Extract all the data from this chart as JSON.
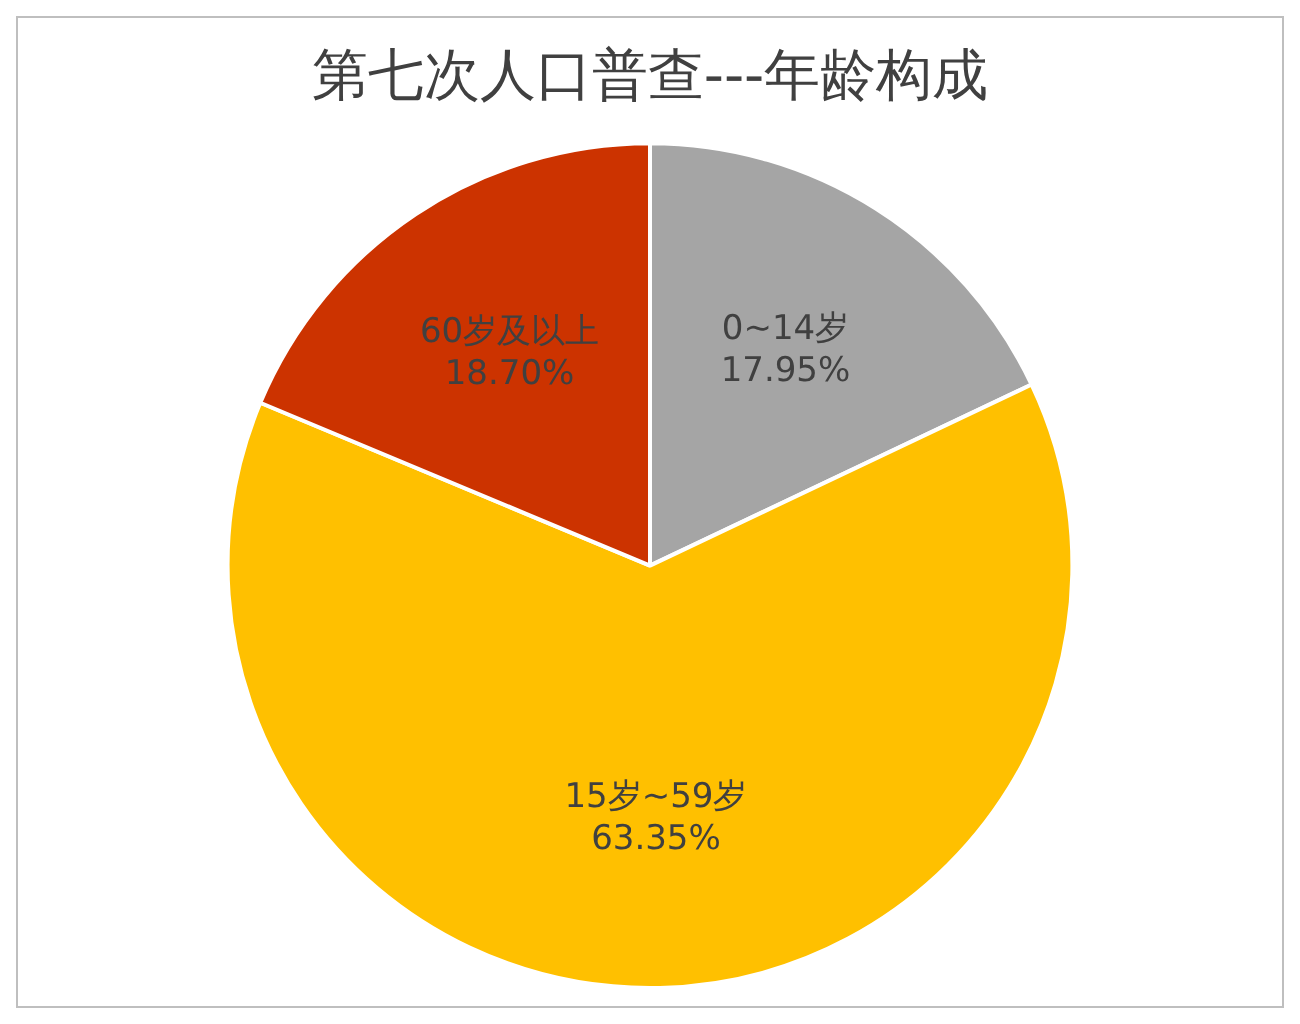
{
  "chart_data": {
    "type": "pie",
    "title": "第七次人口普查---年龄构成",
    "categories": [
      "0~14岁",
      "15岁~59岁",
      "60岁及以上"
    ],
    "values": [
      17.95,
      63.35,
      18.7
    ],
    "value_labels": [
      "17.95%",
      "63.35%",
      "18.70%"
    ],
    "colors": [
      "#a5a5a5",
      "#ffc000",
      "#cc3300"
    ],
    "legend": false
  }
}
